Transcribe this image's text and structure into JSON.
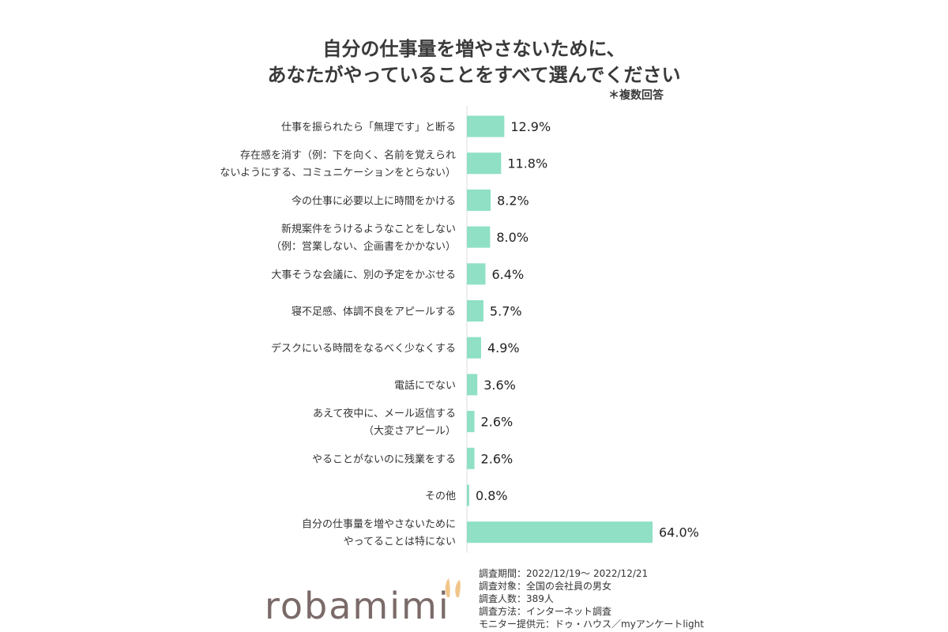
{
  "title_line1": "自分の仕事量を増やさないために、",
  "title_line2": "あなたがやっていることをすべて選んでください",
  "note": "＊複数回答",
  "chart_data": {
    "type": "bar",
    "orientation": "horizontal",
    "bar_color": "#8fe0c4",
    "categories": [
      [
        "仕事を振られたら「無理です」と断る"
      ],
      [
        "存在感を消す（例：下を向く、名前を覚えられ",
        "ないようにする、コミュニケーションをとらない）"
      ],
      [
        "今の仕事に必要以上に時間をかける"
      ],
      [
        "新規案件をうけるようなことをしない",
        "（例：営業しない、企画書をかかない）"
      ],
      [
        "大事そうな会議に、別の予定をかぶせる"
      ],
      [
        "寝不足感、体調不良をアピールする"
      ],
      [
        "デスクにいる時間をなるべく少なくする"
      ],
      [
        "電話にでない"
      ],
      [
        "あえて夜中に、メール返信する",
        "（大変さアピール）"
      ],
      [
        "やることがないのに残業をする"
      ],
      [
        "その他"
      ],
      [
        "自分の仕事量を増やさないために",
        "やってることは特にない"
      ]
    ],
    "values": [
      12.9,
      11.8,
      8.2,
      8.0,
      6.4,
      5.7,
      4.9,
      3.6,
      2.6,
      2.6,
      0.8,
      64.0
    ],
    "value_labels": [
      "12.9%",
      "11.8%",
      "8.2%",
      "8.0%",
      "6.4%",
      "5.7%",
      "4.9%",
      "3.6%",
      "2.6%",
      "2.6%",
      "0.8%",
      "64.0%"
    ],
    "xlim": [
      0,
      64.0
    ]
  },
  "survey_info": [
    "調査期間：2022/12/19～ 2022/12/21",
    "調査対象：全国の会社員の男女",
    "調査人数：389人",
    "調査方法：インターネット調査",
    "モニター提供元：ドゥ・ハウス／myアンケートlight"
  ],
  "logo_text": "robamimi"
}
